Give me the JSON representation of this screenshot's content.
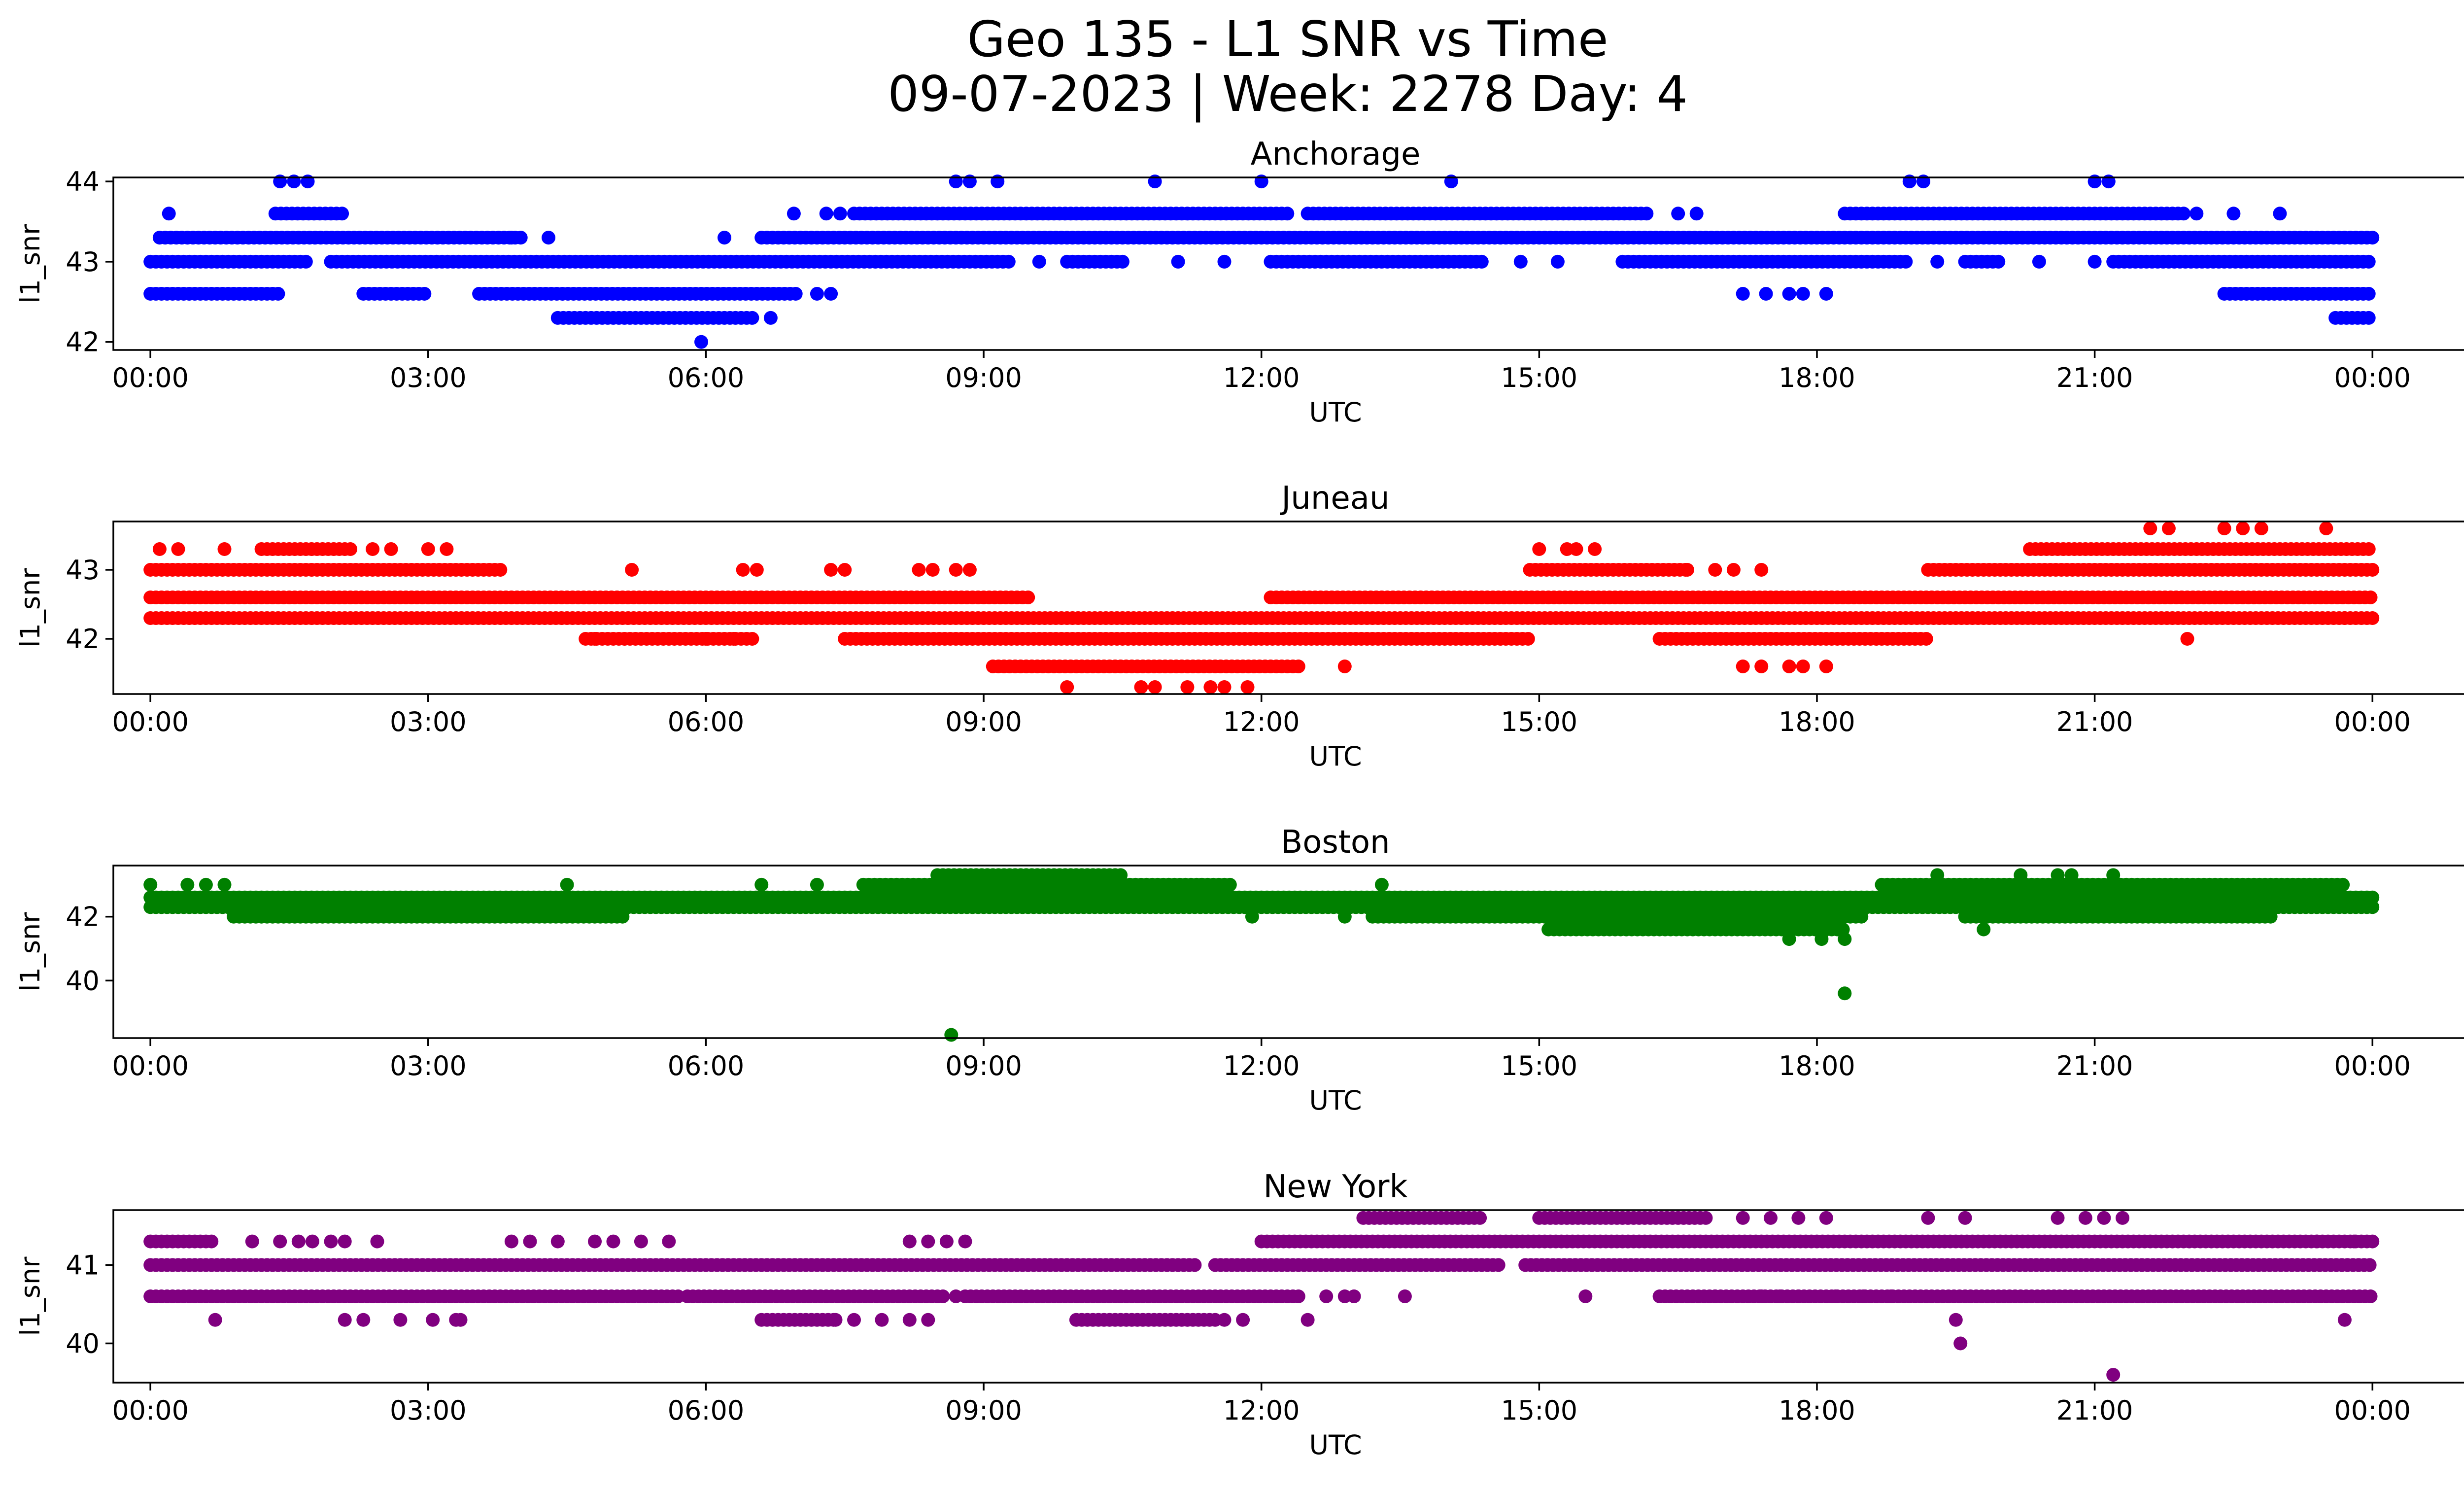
{
  "figure": {
    "title_line1": "Geo 135 - L1 SNR vs Time",
    "title_line2": "09-07-2023 | Week: 2278 Day: 4"
  },
  "chart_data": [
    {
      "type": "scatter",
      "title": "Anchorage",
      "xlabel": "UTC",
      "ylabel": "l1_snr",
      "color": "#0000ff",
      "xlim": [
        -0.4,
        26.0
      ],
      "ylim": [
        41.9,
        44.05
      ],
      "xticks": [
        "00:00",
        "03:00",
        "06:00",
        "09:00",
        "12:00",
        "15:00",
        "18:00",
        "21:00",
        "00:00"
      ],
      "yticks": [
        42,
        43,
        44
      ],
      "bands": [
        {
          "y": 43.0,
          "x": [
            [
              0.0,
              1.7
            ],
            [
              1.95,
              9.3
            ],
            [
              9.9,
              10.5
            ],
            [
              12.1,
              14.4
            ],
            [
              15.9,
              19.0
            ],
            [
              19.6,
              20.0
            ],
            [
              21.2,
              24.0
            ]
          ]
        },
        {
          "y": 43.3,
          "x": [
            [
              0.1,
              4.0
            ],
            [
              6.6,
              24.0
            ]
          ]
        },
        {
          "y": 42.6,
          "x": [
            [
              0.0,
              1.4
            ],
            [
              2.3,
              3.0
            ],
            [
              3.55,
              7.0
            ],
            [
              22.4,
              24.0
            ]
          ]
        },
        {
          "y": 43.6,
          "x": [
            [
              1.35,
              2.1
            ],
            [
              7.6,
              12.3
            ],
            [
              12.5,
              16.2
            ],
            [
              18.3,
              22.0
            ]
          ]
        },
        {
          "y": 42.3,
          "x": [
            [
              4.4,
              6.5
            ],
            [
              23.6,
              24.0
            ]
          ]
        }
      ],
      "points": [
        [
          0.2,
          43.6
        ],
        [
          1.4,
          44.0
        ],
        [
          1.55,
          44.0
        ],
        [
          1.7,
          44.0
        ],
        [
          3.9,
          43.3
        ],
        [
          4.3,
          43.3
        ],
        [
          5.95,
          42.0
        ],
        [
          6.2,
          43.3
        ],
        [
          6.7,
          42.3
        ],
        [
          7.2,
          42.6
        ],
        [
          7.35,
          42.6
        ],
        [
          6.95,
          43.6
        ],
        [
          7.3,
          43.6
        ],
        [
          7.45,
          43.6
        ],
        [
          8.7,
          44.0
        ],
        [
          8.85,
          44.0
        ],
        [
          9.15,
          44.0
        ],
        [
          10.85,
          44.0
        ],
        [
          12.0,
          44.0
        ],
        [
          14.05,
          44.0
        ],
        [
          16.5,
          43.6
        ],
        [
          16.7,
          43.6
        ],
        [
          17.2,
          42.6
        ],
        [
          17.45,
          42.6
        ],
        [
          17.7,
          42.6
        ],
        [
          17.85,
          42.6
        ],
        [
          18.1,
          42.6
        ],
        [
          19.0,
          44.0
        ],
        [
          19.15,
          44.0
        ],
        [
          21.0,
          44.0
        ],
        [
          21.15,
          44.0
        ],
        [
          22.1,
          43.6
        ],
        [
          22.5,
          43.6
        ],
        [
          23.0,
          43.6
        ],
        [
          9.6,
          43.0
        ],
        [
          11.1,
          43.0
        ],
        [
          11.6,
          43.0
        ],
        [
          14.8,
          43.0
        ],
        [
          15.2,
          43.0
        ],
        [
          19.3,
          43.0
        ],
        [
          20.4,
          43.0
        ],
        [
          21.0,
          43.0
        ]
      ]
    },
    {
      "type": "scatter",
      "title": "Juneau",
      "xlabel": "UTC",
      "ylabel": "l1_snr",
      "color": "#ff0000",
      "xlim": [
        -0.4,
        26.0
      ],
      "ylim": [
        41.2,
        43.7
      ],
      "xticks": [
        "00:00",
        "03:00",
        "06:00",
        "09:00",
        "12:00",
        "15:00",
        "18:00",
        "21:00",
        "00:00"
      ],
      "yticks": [
        42,
        43
      ],
      "bands": [
        {
          "y": 43.0,
          "x": [
            [
              0.0,
              3.8
            ],
            [
              14.9,
              16.6
            ],
            [
              19.2,
              24.0
            ]
          ]
        },
        {
          "y": 42.6,
          "x": [
            [
              0.0,
              9.5
            ],
            [
              12.1,
              24.0
            ]
          ]
        },
        {
          "y": 42.3,
          "x": [
            [
              0.0,
              24.0
            ]
          ]
        },
        {
          "y": 42.0,
          "x": [
            [
              4.7,
              6.5
            ],
            [
              7.5,
              14.9
            ],
            [
              16.3,
              19.2
            ]
          ]
        },
        {
          "y": 43.3,
          "x": [
            [
              1.2,
              2.2
            ],
            [
              20.3,
              24.0
            ]
          ]
        },
        {
          "y": 41.6,
          "x": [
            [
              9.1,
              12.4
            ]
          ]
        }
      ],
      "points": [
        [
          0.1,
          43.3
        ],
        [
          0.3,
          43.3
        ],
        [
          0.8,
          43.3
        ],
        [
          2.4,
          43.3
        ],
        [
          2.6,
          43.3
        ],
        [
          3.0,
          43.3
        ],
        [
          3.2,
          43.3
        ],
        [
          5.2,
          43.0
        ],
        [
          6.4,
          43.0
        ],
        [
          6.55,
          43.0
        ],
        [
          7.35,
          43.0
        ],
        [
          7.5,
          43.0
        ],
        [
          8.3,
          43.0
        ],
        [
          8.45,
          43.0
        ],
        [
          8.7,
          43.0
        ],
        [
          8.85,
          43.0
        ],
        [
          9.9,
          41.3
        ],
        [
          10.7,
          41.3
        ],
        [
          10.85,
          41.3
        ],
        [
          11.2,
          41.3
        ],
        [
          11.45,
          41.3
        ],
        [
          11.6,
          41.3
        ],
        [
          11.85,
          41.3
        ],
        [
          12.9,
          41.6
        ],
        [
          15.0,
          43.3
        ],
        [
          15.3,
          43.3
        ],
        [
          15.4,
          43.3
        ],
        [
          15.6,
          43.3
        ],
        [
          16.6,
          43.0
        ],
        [
          16.9,
          43.0
        ],
        [
          17.1,
          43.0
        ],
        [
          17.4,
          43.0
        ],
        [
          17.2,
          41.6
        ],
        [
          17.4,
          41.6
        ],
        [
          17.7,
          41.6
        ],
        [
          17.85,
          41.6
        ],
        [
          18.1,
          41.6
        ],
        [
          21.6,
          43.6
        ],
        [
          21.8,
          43.6
        ],
        [
          22.4,
          43.6
        ],
        [
          22.6,
          43.6
        ],
        [
          22.8,
          43.6
        ],
        [
          23.5,
          43.6
        ],
        [
          22.0,
          42.0
        ],
        [
          23.7,
          42.3
        ],
        [
          6.0,
          42.0
        ],
        [
          6.3,
          42.0
        ],
        [
          4.8,
          42.0
        ]
      ]
    },
    {
      "type": "scatter",
      "title": "Boston",
      "xlabel": "UTC",
      "ylabel": "l1_snr",
      "color": "#008000",
      "xlim": [
        -0.4,
        26.0
      ],
      "ylim": [
        38.2,
        43.6
      ],
      "xticks": [
        "00:00",
        "03:00",
        "06:00",
        "09:00",
        "12:00",
        "15:00",
        "18:00",
        "21:00",
        "00:00"
      ],
      "yticks": [
        40,
        42
      ],
      "bands": [
        {
          "y": 42.6,
          "x": [
            [
              0.0,
              24.0
            ]
          ]
        },
        {
          "y": 42.3,
          "x": [
            [
              0.0,
              24.0
            ]
          ]
        },
        {
          "y": 42.0,
          "x": [
            [
              0.9,
              5.1
            ],
            [
              13.2,
              18.5
            ],
            [
              19.6,
              22.9
            ]
          ]
        },
        {
          "y": 43.0,
          "x": [
            [
              7.7,
              11.7
            ],
            [
              18.7,
              23.7
            ]
          ]
        },
        {
          "y": 43.3,
          "x": [
            [
              8.5,
              10.5
            ]
          ]
        },
        {
          "y": 41.6,
          "x": [
            [
              15.1,
              18.3
            ]
          ]
        }
      ],
      "points": [
        [
          0.0,
          43.0
        ],
        [
          0.4,
          43.0
        ],
        [
          0.6,
          43.0
        ],
        [
          0.8,
          43.0
        ],
        [
          4.5,
          43.0
        ],
        [
          6.6,
          43.0
        ],
        [
          7.2,
          43.0
        ],
        [
          13.3,
          43.0
        ],
        [
          8.65,
          38.3
        ],
        [
          18.3,
          39.6
        ],
        [
          17.7,
          41.3
        ],
        [
          18.05,
          41.3
        ],
        [
          18.3,
          41.3
        ],
        [
          19.8,
          41.6
        ],
        [
          19.3,
          43.3
        ],
        [
          20.2,
          43.3
        ],
        [
          20.6,
          43.3
        ],
        [
          20.75,
          43.3
        ],
        [
          21.2,
          43.3
        ],
        [
          11.9,
          42.0
        ],
        [
          12.9,
          42.0
        ],
        [
          11.0,
          43.0
        ],
        [
          11.35,
          43.0
        ]
      ]
    },
    {
      "type": "scatter",
      "title": "New York",
      "xlabel": "UTC",
      "ylabel": "l1_snr",
      "color": "#800080",
      "xlim": [
        -0.4,
        26.0
      ],
      "ylim": [
        39.5,
        41.7
      ],
      "xticks": [
        "00:00",
        "03:00",
        "06:00",
        "09:00",
        "12:00",
        "15:00",
        "18:00",
        "21:00",
        "00:00"
      ],
      "yticks": [
        40,
        41
      ],
      "bands": [
        {
          "y": 41.0,
          "x": [
            [
              0.0,
              11.3
            ],
            [
              11.5,
              14.6
            ],
            [
              14.85,
              24.0
            ]
          ]
        },
        {
          "y": 40.6,
          "x": [
            [
              0.0,
              5.7
            ],
            [
              5.8,
              8.6
            ],
            [
              8.8,
              12.4
            ],
            [
              16.3,
              24.0
            ]
          ]
        },
        {
          "y": 41.3,
          "x": [
            [
              0.0,
              0.7
            ],
            [
              12.0,
              24.0
            ]
          ]
        },
        {
          "y": 41.6,
          "x": [
            [
              13.1,
              14.4
            ],
            [
              15.0,
              16.8
            ]
          ]
        },
        {
          "y": 40.3,
          "x": [
            [
              6.6,
              7.4
            ],
            [
              10.0,
              11.5
            ]
          ]
        }
      ],
      "points": [
        [
          0.7,
          40.3
        ],
        [
          1.1,
          41.3
        ],
        [
          1.4,
          41.3
        ],
        [
          1.6,
          41.3
        ],
        [
          1.75,
          41.3
        ],
        [
          1.95,
          41.3
        ],
        [
          2.1,
          41.3
        ],
        [
          2.45,
          41.3
        ],
        [
          2.1,
          40.3
        ],
        [
          2.3,
          40.3
        ],
        [
          2.7,
          40.3
        ],
        [
          3.05,
          40.3
        ],
        [
          3.3,
          40.3
        ],
        [
          3.35,
          40.3
        ],
        [
          3.9,
          41.3
        ],
        [
          4.1,
          41.3
        ],
        [
          4.4,
          41.3
        ],
        [
          4.8,
          41.3
        ],
        [
          5.0,
          41.3
        ],
        [
          5.3,
          41.3
        ],
        [
          5.6,
          41.3
        ],
        [
          7.4,
          40.3
        ],
        [
          7.6,
          40.3
        ],
        [
          7.9,
          40.3
        ],
        [
          8.2,
          40.3
        ],
        [
          8.4,
          40.3
        ],
        [
          8.2,
          41.3
        ],
        [
          8.4,
          41.3
        ],
        [
          8.6,
          41.3
        ],
        [
          8.8,
          41.3
        ],
        [
          8.7,
          40.6
        ],
        [
          11.6,
          40.3
        ],
        [
          11.8,
          40.3
        ],
        [
          12.7,
          40.6
        ],
        [
          12.9,
          40.6
        ],
        [
          13.0,
          40.6
        ],
        [
          13.55,
          40.6
        ],
        [
          15.5,
          40.6
        ],
        [
          16.9,
          40.6
        ],
        [
          17.4,
          40.6
        ],
        [
          17.6,
          40.6
        ],
        [
          17.8,
          40.6
        ],
        [
          18.2,
          40.6
        ],
        [
          18.5,
          40.6
        ],
        [
          18.8,
          40.6
        ],
        [
          19.5,
          40.3
        ],
        [
          19.55,
          40.0
        ],
        [
          21.2,
          39.6
        ],
        [
          20.6,
          41.6
        ],
        [
          20.9,
          41.6
        ],
        [
          21.1,
          41.6
        ],
        [
          21.3,
          41.6
        ],
        [
          17.2,
          41.6
        ],
        [
          17.5,
          41.6
        ],
        [
          17.8,
          41.6
        ],
        [
          18.1,
          41.6
        ],
        [
          19.2,
          41.6
        ],
        [
          19.6,
          41.6
        ],
        [
          23.7,
          40.3
        ],
        [
          23.8,
          41.3
        ],
        [
          23.4,
          41.3
        ],
        [
          12.5,
          40.3
        ]
      ]
    }
  ]
}
